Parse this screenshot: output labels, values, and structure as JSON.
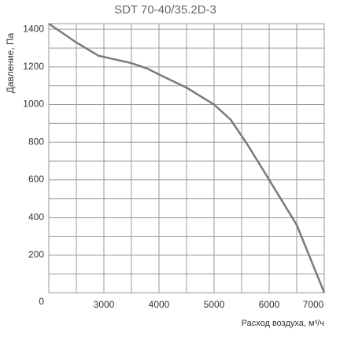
{
  "chart_data": {
    "type": "line",
    "title": "SDT 70-40/35.2D-3",
    "x_label": "Расход воздуха, м³/ч",
    "y_label": "Давление, Па",
    "xlim": [
      2000,
      7000
    ],
    "ylim": [
      0,
      1430
    ],
    "xticks": [
      3000,
      4000,
      5000,
      6000,
      7000
    ],
    "yticks": [
      0,
      200,
      400,
      600,
      800,
      1000,
      1200,
      1400
    ],
    "x_grid": [
      2000,
      2500,
      3000,
      3500,
      4000,
      4500,
      5000,
      5500,
      6000,
      6500,
      7000
    ],
    "y_grid": [
      0,
      100,
      200,
      300,
      400,
      500,
      600,
      700,
      800,
      900,
      1000,
      1100,
      1200,
      1300,
      1400
    ],
    "grid": true,
    "series": [
      {
        "name": "SDT 70-40/35.2D-3",
        "color": "#7a7a7a",
        "x": [
          2000,
          2500,
          2900,
          3200,
          3500,
          3800,
          4000,
          4500,
          5000,
          5300,
          5600,
          6000,
          6500,
          7000
        ],
        "values": [
          1430,
          1330,
          1260,
          1240,
          1220,
          1190,
          1160,
          1090,
          1000,
          920,
          790,
          600,
          360,
          0
        ]
      }
    ]
  }
}
